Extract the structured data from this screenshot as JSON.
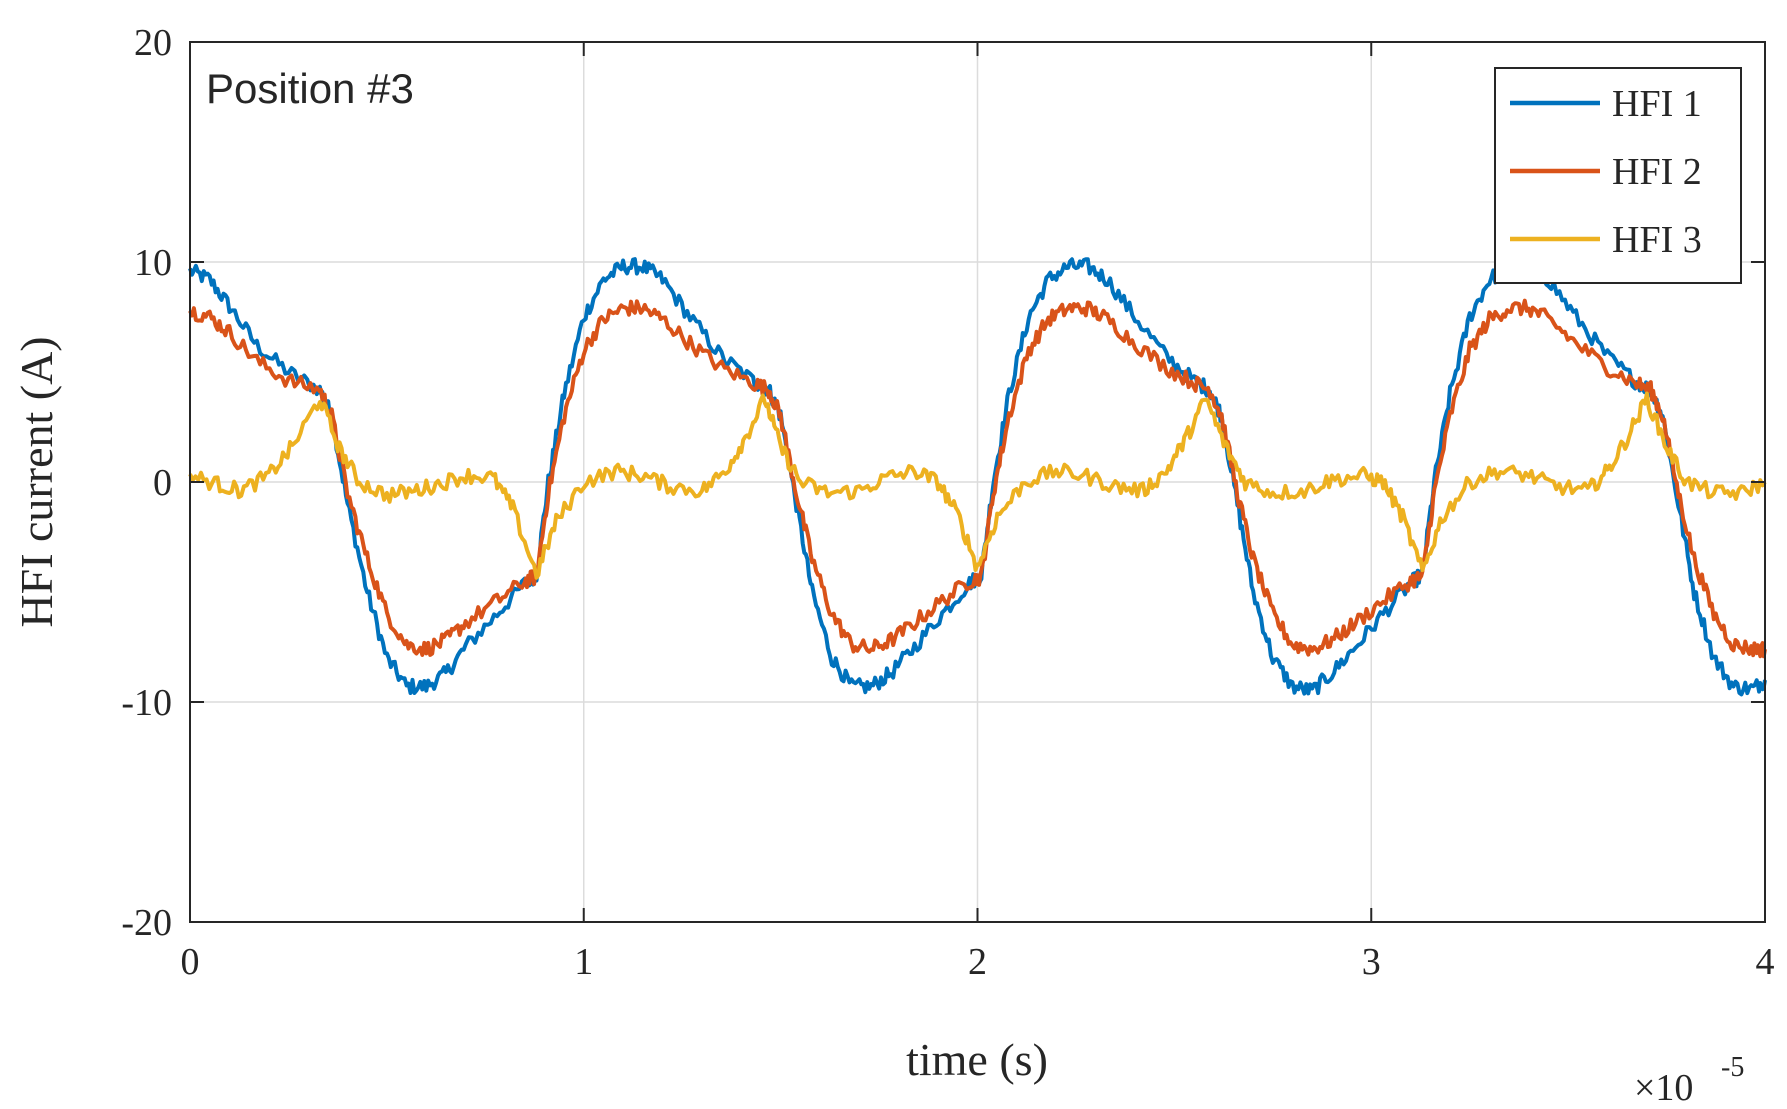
{
  "chart_data": {
    "type": "line",
    "annotation": "Position #3",
    "xlabel": "time (s)",
    "ylabel": "HFI current (A)",
    "x_multiplier_prefix": "×10",
    "x_multiplier_exp": "-5",
    "xlim": [
      0,
      4
    ],
    "ylim": [
      -20,
      20
    ],
    "xticks": [
      0,
      1,
      2,
      3,
      4
    ],
    "xtick_labels": [
      "0",
      "1",
      "2",
      "3",
      "4"
    ],
    "yticks": [
      20,
      10,
      0,
      -10,
      -20
    ],
    "ytick_labels": [
      "20",
      "10",
      "0",
      "-10",
      "-20"
    ],
    "grid": true,
    "legend_position": "top-right",
    "series": [
      {
        "name": "HFI 1",
        "color": "#0072BD",
        "points": [
          [
            0,
            9.6
          ],
          [
            0.05,
            9.2
          ],
          [
            0.1,
            8
          ],
          [
            0.17,
            6.2
          ],
          [
            0.25,
            5
          ],
          [
            0.33,
            4.2
          ],
          [
            0.36,
            3
          ],
          [
            0.4,
            -1
          ],
          [
            0.45,
            -5
          ],
          [
            0.5,
            -8
          ],
          [
            0.55,
            -9.3
          ],
          [
            0.6,
            -9.3
          ],
          [
            0.65,
            -8.7
          ],
          [
            0.7,
            -7.5
          ],
          [
            0.78,
            -6
          ],
          [
            0.85,
            -4.6
          ],
          [
            0.88,
            -4.2
          ],
          [
            0.91,
            0
          ],
          [
            0.95,
            4
          ],
          [
            1.0,
            7.5
          ],
          [
            1.05,
            9.2
          ],
          [
            1.1,
            9.8
          ],
          [
            1.15,
            9.8
          ],
          [
            1.2,
            9.2
          ],
          [
            1.27,
            7.5
          ],
          [
            1.35,
            5.7
          ],
          [
            1.43,
            4.6
          ],
          [
            1.47,
            4.2
          ],
          [
            1.5,
            3
          ],
          [
            1.54,
            -1
          ],
          [
            1.58,
            -5
          ],
          [
            1.63,
            -8
          ],
          [
            1.68,
            -9.3
          ],
          [
            1.73,
            -9.3
          ],
          [
            1.78,
            -8.7
          ],
          [
            1.84,
            -7.5
          ],
          [
            1.91,
            -6
          ],
          [
            1.98,
            -4.6
          ],
          [
            2.01,
            -4.2
          ],
          [
            2.04,
            0
          ],
          [
            2.08,
            4
          ],
          [
            2.13,
            7.5
          ],
          [
            2.18,
            9.2
          ],
          [
            2.23,
            9.8
          ],
          [
            2.28,
            9.8
          ],
          [
            2.33,
            9.2
          ],
          [
            2.4,
            7.5
          ],
          [
            2.48,
            5.7
          ],
          [
            2.55,
            4.6
          ],
          [
            2.59,
            4.2
          ],
          [
            2.62,
            3
          ],
          [
            2.66,
            -1
          ],
          [
            2.7,
            -5
          ],
          [
            2.75,
            -8
          ],
          [
            2.8,
            -9.3
          ],
          [
            2.85,
            -9.5
          ],
          [
            2.9,
            -8.7
          ],
          [
            2.96,
            -7.5
          ],
          [
            3.03,
            -6
          ],
          [
            3.1,
            -4.6
          ],
          [
            3.13,
            -4.2
          ],
          [
            3.16,
            0
          ],
          [
            3.2,
            4
          ],
          [
            3.25,
            7.5
          ],
          [
            3.3,
            9.2
          ],
          [
            3.35,
            9.8
          ],
          [
            3.4,
            9.8
          ],
          [
            3.45,
            9.2
          ],
          [
            3.52,
            7.5
          ],
          [
            3.6,
            5.7
          ],
          [
            3.67,
            4.6
          ],
          [
            3.71,
            4.2
          ],
          [
            3.74,
            3
          ],
          [
            3.78,
            -1
          ],
          [
            3.82,
            -5
          ],
          [
            3.87,
            -8
          ],
          [
            3.92,
            -9.3
          ],
          [
            3.97,
            -9.4
          ],
          [
            4.0,
            -9
          ]
        ]
      },
      {
        "name": "HFI 2",
        "color": "#D95319",
        "points": [
          [
            0,
            7.8
          ],
          [
            0.05,
            7.5
          ],
          [
            0.1,
            6.8
          ],
          [
            0.17,
            5.5
          ],
          [
            0.25,
            4.6
          ],
          [
            0.33,
            4.2
          ],
          [
            0.36,
            3
          ],
          [
            0.4,
            -0.5
          ],
          [
            0.45,
            -3.5
          ],
          [
            0.5,
            -6
          ],
          [
            0.55,
            -7.4
          ],
          [
            0.6,
            -7.6
          ],
          [
            0.65,
            -7.2
          ],
          [
            0.7,
            -6.4
          ],
          [
            0.78,
            -5.4
          ],
          [
            0.85,
            -4.5
          ],
          [
            0.88,
            -4.3
          ],
          [
            0.91,
            -0.5
          ],
          [
            0.95,
            3
          ],
          [
            1.0,
            6
          ],
          [
            1.05,
            7.4
          ],
          [
            1.1,
            7.9
          ],
          [
            1.15,
            7.9
          ],
          [
            1.2,
            7.4
          ],
          [
            1.27,
            6.3
          ],
          [
            1.35,
            5.2
          ],
          [
            1.43,
            4.5
          ],
          [
            1.47,
            4.2
          ],
          [
            1.5,
            3
          ],
          [
            1.54,
            -0.5
          ],
          [
            1.58,
            -3.5
          ],
          [
            1.63,
            -6
          ],
          [
            1.68,
            -7.4
          ],
          [
            1.73,
            -7.6
          ],
          [
            1.78,
            -7.2
          ],
          [
            1.84,
            -6.4
          ],
          [
            1.91,
            -5.4
          ],
          [
            1.98,
            -4.5
          ],
          [
            2.01,
            -4.3
          ],
          [
            2.04,
            -0.5
          ],
          [
            2.08,
            3
          ],
          [
            2.13,
            6
          ],
          [
            2.18,
            7.4
          ],
          [
            2.23,
            7.9
          ],
          [
            2.28,
            7.9
          ],
          [
            2.33,
            7.4
          ],
          [
            2.4,
            6.3
          ],
          [
            2.48,
            5.2
          ],
          [
            2.55,
            4.5
          ],
          [
            2.59,
            4.2
          ],
          [
            2.62,
            3
          ],
          [
            2.66,
            -0.5
          ],
          [
            2.7,
            -3.5
          ],
          [
            2.75,
            -6
          ],
          [
            2.8,
            -7.4
          ],
          [
            2.85,
            -7.6
          ],
          [
            2.9,
            -7.2
          ],
          [
            2.96,
            -6.4
          ],
          [
            3.03,
            -5.4
          ],
          [
            3.1,
            -4.5
          ],
          [
            3.13,
            -4.3
          ],
          [
            3.16,
            -0.5
          ],
          [
            3.2,
            3
          ],
          [
            3.25,
            6
          ],
          [
            3.3,
            7.4
          ],
          [
            3.35,
            7.9
          ],
          [
            3.4,
            7.9
          ],
          [
            3.45,
            7.4
          ],
          [
            3.52,
            6.3
          ],
          [
            3.6,
            5.2
          ],
          [
            3.67,
            4.5
          ],
          [
            3.71,
            4.2
          ],
          [
            3.74,
            3
          ],
          [
            3.78,
            -0.5
          ],
          [
            3.82,
            -3.5
          ],
          [
            3.87,
            -6
          ],
          [
            3.92,
            -7.4
          ],
          [
            3.97,
            -7.6
          ],
          [
            4.0,
            -7.6
          ]
        ]
      },
      {
        "name": "HFI 3",
        "color": "#EDB120",
        "points": [
          [
            0,
            0.3
          ],
          [
            0.07,
            -0.1
          ],
          [
            0.13,
            -0.4
          ],
          [
            0.2,
            0.3
          ],
          [
            0.26,
            1.6
          ],
          [
            0.33,
            3.8
          ],
          [
            0.38,
            1.5
          ],
          [
            0.43,
            0
          ],
          [
            0.5,
            -0.6
          ],
          [
            0.57,
            -0.4
          ],
          [
            0.63,
            -0.1
          ],
          [
            0.7,
            0.3
          ],
          [
            0.77,
            0.2
          ],
          [
            0.82,
            -1.2
          ],
          [
            0.88,
            -4.2
          ],
          [
            0.93,
            -1.8
          ],
          [
            1.0,
            0
          ],
          [
            1.08,
            0.5
          ],
          [
            1.15,
            0.3
          ],
          [
            1.22,
            -0.2
          ],
          [
            1.3,
            -0.4
          ],
          [
            1.36,
            0.5
          ],
          [
            1.41,
            2
          ],
          [
            1.46,
            3.8
          ],
          [
            1.5,
            1.6
          ],
          [
            1.55,
            0
          ],
          [
            1.62,
            -0.5
          ],
          [
            1.7,
            -0.4
          ],
          [
            1.77,
            0.2
          ],
          [
            1.84,
            0.5
          ],
          [
            1.9,
            0
          ],
          [
            1.95,
            -1.5
          ],
          [
            2.0,
            -3.9
          ],
          [
            2.05,
            -1.6
          ],
          [
            2.12,
            0
          ],
          [
            2.2,
            0.5
          ],
          [
            2.27,
            0.3
          ],
          [
            2.35,
            -0.2
          ],
          [
            2.42,
            -0.4
          ],
          [
            2.48,
            0.5
          ],
          [
            2.53,
            2
          ],
          [
            2.58,
            3.8
          ],
          [
            2.63,
            1.6
          ],
          [
            2.68,
            0
          ],
          [
            2.75,
            -0.5
          ],
          [
            2.83,
            -0.4
          ],
          [
            2.9,
            0.1
          ],
          [
            2.98,
            0.3
          ],
          [
            3.03,
            0
          ],
          [
            3.08,
            -1.6
          ],
          [
            3.13,
            -4.1
          ],
          [
            3.18,
            -1.6
          ],
          [
            3.25,
            0
          ],
          [
            3.32,
            0.5
          ],
          [
            3.4,
            0.3
          ],
          [
            3.47,
            -0.2
          ],
          [
            3.55,
            -0.4
          ],
          [
            3.6,
            0.5
          ],
          [
            3.65,
            2
          ],
          [
            3.7,
            3.8
          ],
          [
            3.75,
            1.6
          ],
          [
            3.8,
            0
          ],
          [
            3.87,
            -0.5
          ],
          [
            3.94,
            -0.5
          ],
          [
            4.0,
            0
          ]
        ]
      }
    ]
  }
}
